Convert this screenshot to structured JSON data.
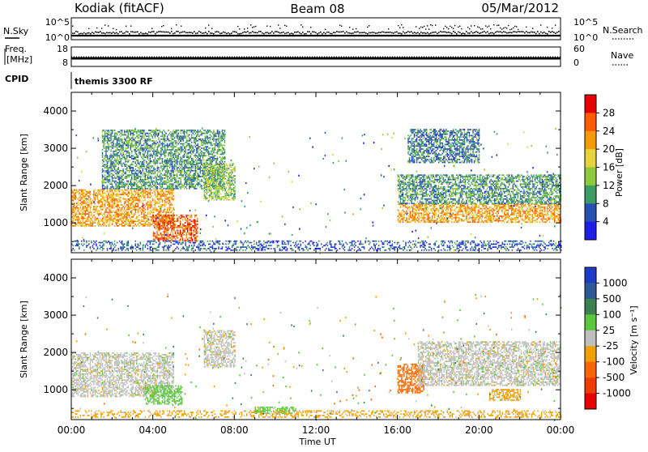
{
  "header": {
    "station": "Kodiak (fitACF)",
    "beam": "Beam 08",
    "date": "05/Mar/2012"
  },
  "top_panels": {
    "nsky_label": "N.Sky",
    "nsky_ticks": [
      "10^5",
      "10^0"
    ],
    "nsearch_label": "N.Search",
    "nsearch_ticks": [
      "10^5",
      "10^0"
    ],
    "freq_label_1": "Freq.",
    "freq_label_2": "[MHz]",
    "freq_ticks": [
      "18",
      "8"
    ],
    "nave_label": "Nave",
    "nave_ticks": [
      "60",
      "0"
    ],
    "cpid_label": "CPID",
    "cpid_value": "themis 3300 RF"
  },
  "power_scale": {
    "title": "Power [dB]",
    "ticks": [
      "28",
      "24",
      "20",
      "16",
      "12",
      "8",
      "4"
    ],
    "colors": [
      "#e60000",
      "#ff5a00",
      "#f59a00",
      "#e6d23c",
      "#8ec83c",
      "#3c9c64",
      "#2850b4",
      "#1e1ee6"
    ]
  },
  "velocity_scale": {
    "title": "Velocity [m s⁻¹]",
    "ticks": [
      "1000",
      "500",
      "100",
      "25",
      "-25",
      "-100",
      "-500",
      "-1000"
    ],
    "colors": [
      "#1e3cc8",
      "#3c8250",
      "#5ac83c",
      "#c0c0c0",
      "#c0c0c0",
      "#f0a000",
      "#ff6400",
      "#e60000"
    ]
  },
  "chart_data": [
    {
      "type": "heatmap",
      "name": "power",
      "xlabel": "Time UT",
      "ylabel": "Slant Range [km]",
      "xlim_hours": [
        0,
        24
      ],
      "ylim_km": [
        200,
        4500
      ],
      "x_ticks": [
        "00:00",
        "04:00",
        "08:00",
        "12:00",
        "16:00",
        "20:00",
        "00:00"
      ],
      "y_ticks": [
        1000,
        2000,
        3000,
        4000
      ],
      "colorbar": "Power [dB]",
      "approx_regions": [
        {
          "t_start": 0.0,
          "t_end": 5.0,
          "r_low": 900,
          "r_high": 1900,
          "level_db": 24
        },
        {
          "t_start": 4.0,
          "t_end": 6.2,
          "r_low": 500,
          "r_high": 1200,
          "level_db": 28
        },
        {
          "t_start": 1.5,
          "t_end": 7.5,
          "r_low": 1900,
          "r_high": 3500,
          "level_db": 12
        },
        {
          "t_start": 6.5,
          "t_end": 8.0,
          "r_low": 1600,
          "r_high": 2600,
          "level_db": 16
        },
        {
          "t_start": 16.0,
          "t_end": 24.0,
          "r_low": 1000,
          "r_high": 1500,
          "level_db": 24
        },
        {
          "t_start": 16.0,
          "t_end": 24.0,
          "r_low": 1500,
          "r_high": 2300,
          "level_db": 12
        },
        {
          "t_start": 16.5,
          "t_end": 20.0,
          "r_low": 2600,
          "r_high": 3500,
          "level_db": 10
        },
        {
          "t_start": 0.0,
          "t_end": 24.0,
          "r_low": 250,
          "r_high": 500,
          "level_db": 8
        }
      ]
    },
    {
      "type": "heatmap",
      "name": "velocity",
      "xlabel": "Time UT",
      "ylabel": "Slant Range [km]",
      "xlim_hours": [
        0,
        24
      ],
      "ylim_km": [
        200,
        4500
      ],
      "x_ticks": [
        "00:00",
        "04:00",
        "08:00",
        "12:00",
        "16:00",
        "20:00",
        "00:00"
      ],
      "y_ticks": [
        1000,
        2000,
        3000,
        4000
      ],
      "colorbar": "Velocity [m s⁻¹]",
      "approx_regions": [
        {
          "t_start": 0.0,
          "t_end": 5.0,
          "r_low": 800,
          "r_high": 2000,
          "velocity": 0
        },
        {
          "t_start": 3.6,
          "t_end": 5.4,
          "r_low": 600,
          "r_high": 1100,
          "velocity": 100
        },
        {
          "t_start": 6.5,
          "t_end": 8.0,
          "r_low": 1600,
          "r_high": 2600,
          "velocity": 0
        },
        {
          "t_start": 16.0,
          "t_end": 17.3,
          "r_low": 900,
          "r_high": 1700,
          "velocity": -300
        },
        {
          "t_start": 17.0,
          "t_end": 24.0,
          "r_low": 1100,
          "r_high": 2300,
          "velocity": 0
        },
        {
          "t_start": 20.5,
          "t_end": 22.0,
          "r_low": 700,
          "r_high": 1000,
          "velocity": -100
        },
        {
          "t_start": 9.0,
          "t_end": 11.0,
          "r_low": 350,
          "r_high": 550,
          "velocity": 100
        },
        {
          "t_start": 0.0,
          "t_end": 24.0,
          "r_low": 250,
          "r_high": 450,
          "velocity": -100
        }
      ]
    }
  ]
}
